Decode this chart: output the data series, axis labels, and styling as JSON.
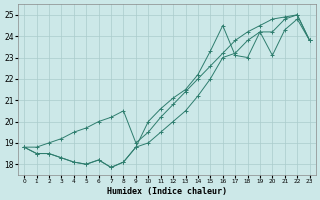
{
  "xlabel": "Humidex (Indice chaleur)",
  "ylabel": "",
  "xlim": [
    -0.5,
    23.5
  ],
  "ylim": [
    17.5,
    25.5
  ],
  "yticks": [
    18,
    19,
    20,
    21,
    22,
    23,
    24,
    25
  ],
  "xticks": [
    0,
    1,
    2,
    3,
    4,
    5,
    6,
    7,
    8,
    9,
    10,
    11,
    12,
    13,
    14,
    15,
    16,
    17,
    18,
    19,
    20,
    21,
    22,
    23
  ],
  "line_color": "#2e7d6e",
  "bg_color": "#cce8e8",
  "grid_color": "#aacccc",
  "series": [
    [
      18.8,
      18.5,
      18.5,
      18.3,
      18.1,
      18.0,
      18.2,
      17.85,
      18.1,
      18.8,
      19.0,
      19.5,
      20.0,
      20.5,
      21.2,
      22.0,
      23.0,
      23.2,
      23.8,
      24.2,
      23.1,
      24.3,
      24.8,
      23.8
    ],
    [
      18.8,
      18.5,
      18.5,
      18.3,
      18.1,
      18.0,
      18.2,
      17.85,
      18.1,
      18.8,
      20.0,
      20.6,
      21.1,
      21.5,
      22.2,
      23.3,
      24.5,
      23.1,
      23.0,
      24.2,
      24.2,
      24.8,
      25.0,
      23.8
    ],
    [
      18.8,
      18.8,
      19.0,
      19.2,
      19.5,
      19.7,
      20.0,
      20.2,
      20.5,
      19.0,
      19.5,
      20.2,
      20.8,
      21.4,
      22.0,
      22.6,
      23.2,
      23.8,
      24.2,
      24.5,
      24.8,
      24.9,
      25.0,
      23.8
    ]
  ]
}
